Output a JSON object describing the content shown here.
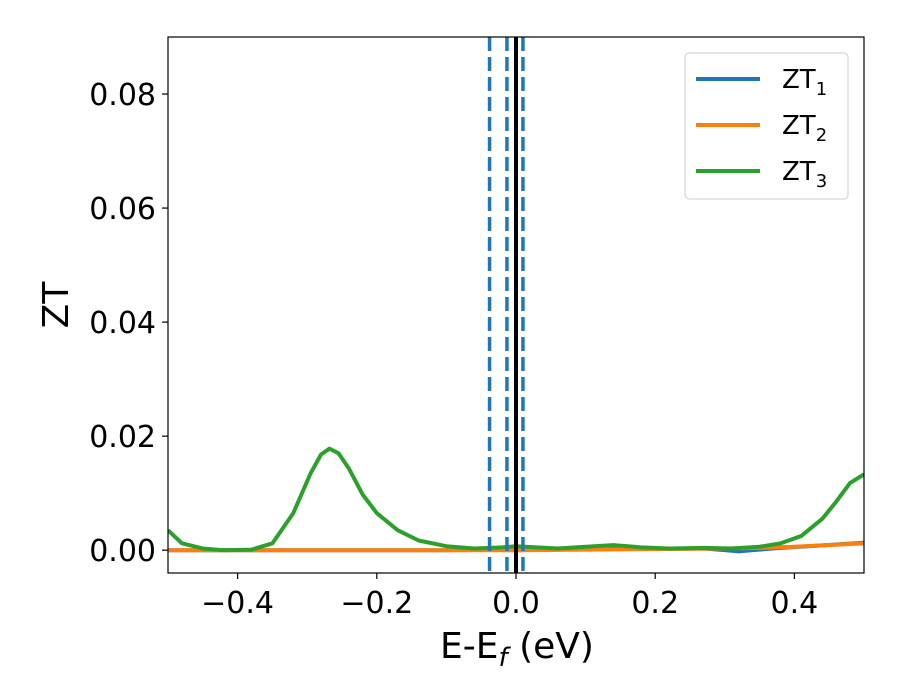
{
  "chart_data": {
    "type": "line",
    "xlabel": "E-E_f (eV)",
    "ylabel": "ZT",
    "xlim": [
      -0.5,
      0.5
    ],
    "ylim": [
      -0.004,
      0.09
    ],
    "xticks": [
      -0.4,
      -0.2,
      0.0,
      0.2,
      0.4
    ],
    "xtick_labels": [
      "−0.4",
      "−0.2",
      "0.0",
      "0.2",
      "0.4"
    ],
    "yticks": [
      0.0,
      0.02,
      0.04,
      0.06,
      0.08
    ],
    "ytick_labels": [
      "0.00",
      "0.02",
      "0.04",
      "0.06",
      "0.08"
    ],
    "grid": false,
    "legend_position": "top-right",
    "vertical_lines": [
      {
        "x": -0.038,
        "style": "dashed",
        "color": "#1f77b4"
      },
      {
        "x": -0.013,
        "style": "dashed",
        "color": "#1f77b4"
      },
      {
        "x": 0.0,
        "style": "solid",
        "color": "#000000"
      },
      {
        "x": 0.01,
        "style": "dashed",
        "color": "#1f77b4"
      }
    ],
    "series": [
      {
        "name": "ZT1",
        "legend_base": "ZT",
        "legend_sub": "1",
        "color": "#1f77b4",
        "points": [
          [
            -0.5,
            0.0
          ],
          [
            -0.3,
            0.0
          ],
          [
            -0.1,
            0.0
          ],
          [
            -0.05,
            0.0001
          ],
          [
            0.0,
            0.0
          ],
          [
            0.05,
            0.0001
          ],
          [
            0.1,
            0.0002
          ],
          [
            0.2,
            0.0002
          ],
          [
            0.27,
            0.0003
          ],
          [
            0.3,
            0.0
          ],
          [
            0.32,
            -0.0002
          ],
          [
            0.34,
            0.0
          ],
          [
            0.38,
            0.0004
          ],
          [
            0.42,
            0.0007
          ],
          [
            0.46,
            0.001
          ],
          [
            0.5,
            0.0013
          ]
        ]
      },
      {
        "name": "ZT2",
        "legend_base": "ZT",
        "legend_sub": "2",
        "color": "#ff7f0e",
        "points": [
          [
            -0.5,
            0.0
          ],
          [
            -0.2,
            0.0
          ],
          [
            0.0,
            0.0
          ],
          [
            0.1,
            0.0001
          ],
          [
            0.2,
            0.0002
          ],
          [
            0.3,
            0.0003
          ],
          [
            0.35,
            0.0004
          ],
          [
            0.4,
            0.0006
          ],
          [
            0.45,
            0.0009
          ],
          [
            0.5,
            0.0012
          ]
        ]
      },
      {
        "name": "ZT3",
        "legend_base": "ZT",
        "legend_sub": "3",
        "color": "#2ca02c",
        "points": [
          [
            -0.5,
            0.0035
          ],
          [
            -0.48,
            0.0012
          ],
          [
            -0.45,
            0.0003
          ],
          [
            -0.42,
            0.0
          ],
          [
            -0.38,
            0.0001
          ],
          [
            -0.35,
            0.0012
          ],
          [
            -0.32,
            0.0065
          ],
          [
            -0.295,
            0.0135
          ],
          [
            -0.28,
            0.0168
          ],
          [
            -0.268,
            0.0178
          ],
          [
            -0.255,
            0.017
          ],
          [
            -0.24,
            0.0143
          ],
          [
            -0.22,
            0.0097
          ],
          [
            -0.2,
            0.0065
          ],
          [
            -0.17,
            0.0035
          ],
          [
            -0.14,
            0.0017
          ],
          [
            -0.1,
            0.0007
          ],
          [
            -0.06,
            0.0003
          ],
          [
            -0.02,
            0.0005
          ],
          [
            0.0,
            0.0007
          ],
          [
            0.03,
            0.0005
          ],
          [
            0.06,
            0.0003
          ],
          [
            0.1,
            0.0006
          ],
          [
            0.14,
            0.0009
          ],
          [
            0.18,
            0.0005
          ],
          [
            0.22,
            0.0003
          ],
          [
            0.27,
            0.0004
          ],
          [
            0.31,
            0.0003
          ],
          [
            0.35,
            0.0006
          ],
          [
            0.38,
            0.0012
          ],
          [
            0.41,
            0.0025
          ],
          [
            0.44,
            0.0055
          ],
          [
            0.46,
            0.0085
          ],
          [
            0.48,
            0.0118
          ],
          [
            0.5,
            0.0133
          ]
        ]
      }
    ]
  }
}
